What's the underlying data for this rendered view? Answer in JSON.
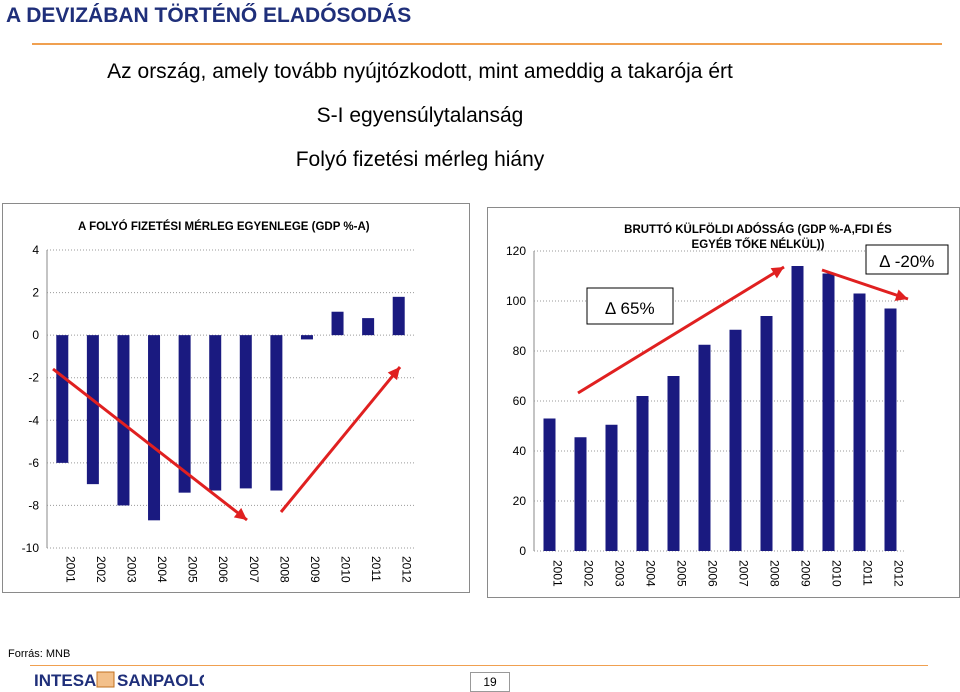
{
  "header": {
    "title": "A DEVIZÁBAN TÖRTÉNŐ ELADÓSODÁS",
    "line1": "Az ország, amely tovább nyújtózkodott, mint ameddig a takarója ért",
    "line2": "S-I  egyensúlytalanság",
    "line3": "Folyó fizetési mérleg hiány"
  },
  "chart_data": [
    {
      "type": "bar",
      "title": "A FOLYÓ FIZETÉSI MÉRLEG EGYENLEGE (GDP %-A)",
      "categories": [
        "2001",
        "2002",
        "2003",
        "2004",
        "2005",
        "2006",
        "2007",
        "2008",
        "2009",
        "2010",
        "2011",
        "2012"
      ],
      "values": [
        -6.0,
        -7.0,
        -8.0,
        -8.7,
        -7.4,
        -7.3,
        -7.2,
        -7.3,
        -0.2,
        1.1,
        0.8,
        1.8
      ],
      "ylim": [
        -10,
        4
      ],
      "yticks": [
        -10,
        -8,
        -6,
        -4,
        -2,
        0,
        2,
        4
      ],
      "grid": true,
      "bar_color": "#1a1a80",
      "arrow_color": "#e02020"
    },
    {
      "type": "bar",
      "title_line1": "BRUTTÓ KÜLFÖLDI ADÓSSÁG (GDP %-A,FDI ÉS",
      "title_line2": "EGYÉB TŐKE NÉLKÜL))",
      "categories": [
        "2001",
        "2002",
        "2003",
        "2004",
        "2005",
        "2006",
        "2007",
        "2008",
        "2009",
        "2010",
        "2011",
        "2012"
      ],
      "values": [
        53,
        45.5,
        50.5,
        62,
        70,
        82.5,
        88.5,
        94,
        114,
        111,
        103,
        97
      ],
      "ylim": [
        0,
        120
      ],
      "yticks": [
        0,
        20,
        40,
        60,
        80,
        100,
        120
      ],
      "grid": true,
      "bar_color": "#1a1a80",
      "arrow_color": "#e02020",
      "annotations": [
        "∆  65%",
        "∆  -20%"
      ]
    }
  ],
  "footer": {
    "source": "Forrás: MNB",
    "logo_left": "INTESA",
    "logo_right": "SANPAOLO",
    "page_number": "19"
  }
}
